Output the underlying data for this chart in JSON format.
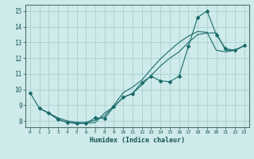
{
  "xlabel": "Humidex (Indice chaleur)",
  "background_color": "#ceeaea",
  "grid_color": "#aacfcf",
  "line_color": "#1a6b6b",
  "xlim": [
    -0.5,
    23.5
  ],
  "ylim": [
    7.6,
    15.4
  ],
  "yticks": [
    8,
    9,
    10,
    11,
    12,
    13,
    14,
    15
  ],
  "xticks": [
    0,
    1,
    2,
    3,
    4,
    5,
    6,
    7,
    8,
    9,
    10,
    11,
    12,
    13,
    14,
    15,
    16,
    17,
    18,
    19,
    20,
    21,
    22,
    23
  ],
  "line1_x": [
    0,
    1,
    2,
    3,
    4,
    5,
    6,
    7,
    8,
    9,
    10,
    11,
    12,
    13,
    14,
    15,
    16,
    17,
    18,
    19,
    20,
    21,
    22,
    23
  ],
  "line1_y": [
    9.8,
    8.8,
    8.5,
    8.1,
    7.9,
    7.85,
    7.85,
    8.2,
    8.15,
    8.9,
    9.5,
    9.75,
    10.45,
    10.85,
    10.55,
    10.5,
    10.85,
    12.75,
    14.6,
    15.0,
    13.5,
    12.6,
    12.5,
    12.8
  ],
  "line2_x": [
    1,
    2,
    3,
    4,
    5,
    6,
    7,
    8,
    9,
    10,
    11,
    12,
    13,
    14,
    15,
    16,
    17,
    18,
    19,
    20,
    21,
    22,
    23
  ],
  "line2_y": [
    8.8,
    8.5,
    8.2,
    8.0,
    7.9,
    7.9,
    8.05,
    8.3,
    9.0,
    9.8,
    10.15,
    10.6,
    11.3,
    11.95,
    12.5,
    13.0,
    13.4,
    13.7,
    13.65,
    12.5,
    12.4,
    12.5,
    12.8
  ],
  "line3_x": [
    1,
    2,
    3,
    4,
    5,
    6,
    7,
    8,
    9,
    10,
    11,
    12,
    13,
    14,
    15,
    16,
    17,
    18,
    19,
    20,
    21,
    22,
    23
  ],
  "line3_y": [
    8.8,
    8.5,
    8.1,
    7.9,
    7.85,
    7.85,
    7.9,
    8.5,
    8.9,
    9.5,
    9.75,
    10.3,
    10.9,
    11.5,
    12.0,
    12.4,
    13.0,
    13.5,
    13.6,
    13.6,
    12.5,
    12.5,
    12.8
  ]
}
